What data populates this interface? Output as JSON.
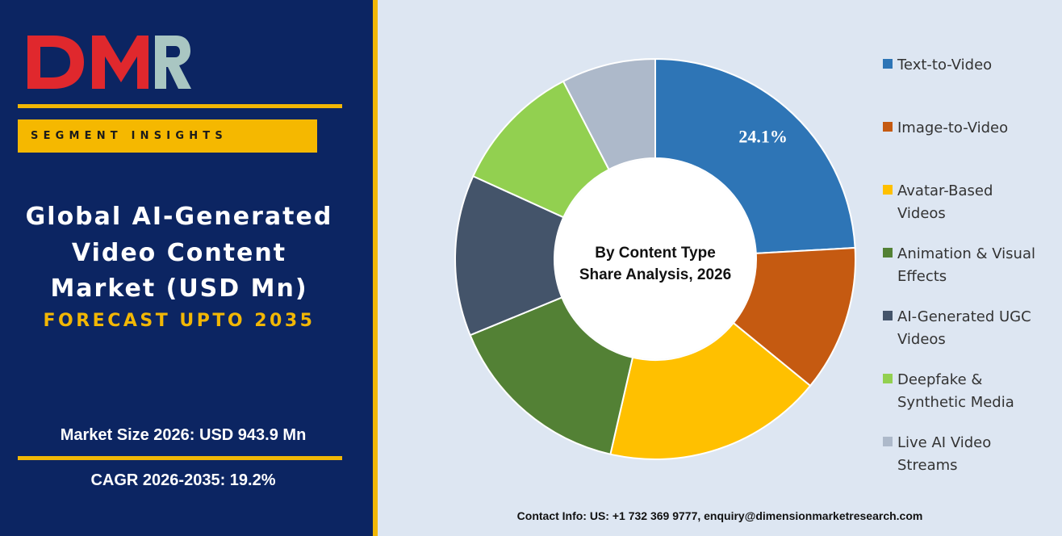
{
  "brand": {
    "logo_text": "DMR"
  },
  "panel": {
    "segment_label": "SEGMENT INSIGHTS",
    "title_lines": [
      "Global AI-Generated",
      "Video Content",
      "Market (USD Mn)"
    ],
    "forecast": "FORECAST UPTO 2035",
    "market_size": "Market Size 2026: USD 943.9 Mn",
    "cagr": "CAGR 2026-2035: 19.2%"
  },
  "chart_data": {
    "type": "pie",
    "center_label_lines": [
      "By Content Type",
      "Share Analysis, 2026"
    ],
    "categories": [
      "Text-to-Video",
      "Image-to-Video",
      "Avatar-Based Videos",
      "Animation & Visual Effects",
      "AI-Generated UGC Videos",
      "Deepfake & Synthetic Media",
      "Live AI Video Streams"
    ],
    "values": [
      24.1,
      11.8,
      17.7,
      15.2,
      13.0,
      10.6,
      7.6
    ],
    "colors": [
      "#2e75b6",
      "#c55a11",
      "#ffc000",
      "#538135",
      "#44546a",
      "#92d050",
      "#adb9ca"
    ],
    "data_labels": [
      "24.1%",
      "",
      "",
      "",
      "",
      "",
      ""
    ],
    "legend_placement": "right"
  },
  "legend": {
    "items": [
      {
        "lines": [
          "Text-to-Video"
        ]
      },
      {
        "lines": [
          "Image-to-Video"
        ]
      },
      {
        "lines": [
          "Avatar-Based",
          "Videos"
        ]
      },
      {
        "lines": [
          "Animation & Visual",
          "Effects"
        ]
      },
      {
        "lines": [
          "AI-Generated UGC",
          "Videos"
        ]
      },
      {
        "lines": [
          "Deepfake &",
          "Synthetic Media"
        ]
      },
      {
        "lines": [
          "Live AI Video",
          "Streams"
        ]
      }
    ]
  },
  "footer": {
    "contact": "Contact Info: US: +1 732 369 9777, enquiry@dimensionmarketresearch.com"
  }
}
